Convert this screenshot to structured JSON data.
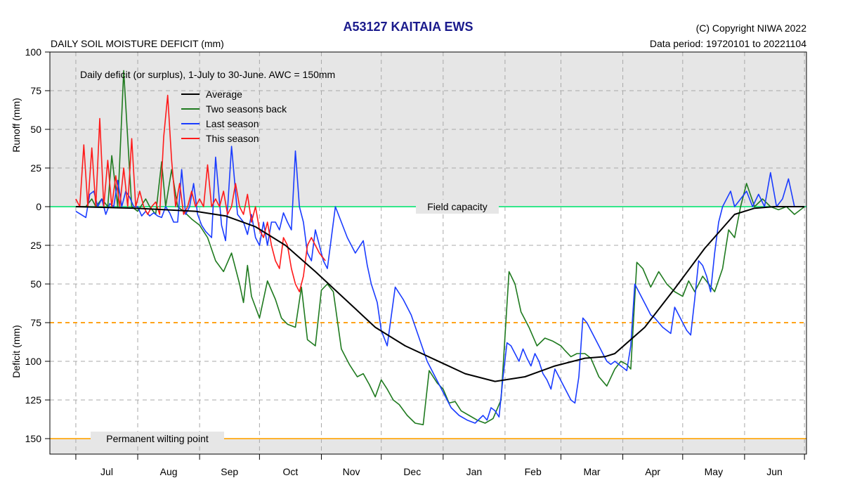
{
  "header": {
    "title": "A53127  KAITAIA EWS",
    "subtitle": "DAILY SOIL MOISTURE DEFICIT (mm)",
    "copyright": "(C) Copyright NIWA  2022",
    "data_period": "Data period:  19720101  to  20221104"
  },
  "colors": {
    "plot_bg": "#e6e6e6",
    "grid": "#a8a8a8",
    "title": "#1a1a8c",
    "field_capacity": "#33e68a",
    "dashed_orange": "#ffa31a",
    "wilting": "#ffb22e"
  },
  "chart_data": {
    "type": "line",
    "title": "A53127  KAITAIA EWS",
    "ylabel_top": "Runoff (mm)",
    "ylabel_bottom": "Deficit (mm)",
    "annotation": "Daily deficit (or surplus), 1-July to 30-June.  AWC = 150mm",
    "ylim": [
      -100,
      160
    ],
    "y_ticks": [
      {
        "v": -100,
        "label": "100"
      },
      {
        "v": -75,
        "label": "75"
      },
      {
        "v": -50,
        "label": "50"
      },
      {
        "v": -25,
        "label": "25"
      },
      {
        "v": 0,
        "label": "0"
      },
      {
        "v": 25,
        "label": "25"
      },
      {
        "v": 50,
        "label": "50"
      },
      {
        "v": 75,
        "label": "75"
      },
      {
        "v": 100,
        "label": "100"
      },
      {
        "v": 125,
        "label": "125"
      },
      {
        "v": 150,
        "label": "150"
      }
    ],
    "xlim": [
      -13,
      366
    ],
    "months": [
      "Jul",
      "Aug",
      "Sep",
      "Oct",
      "Nov",
      "Dec",
      "Jan",
      "Feb",
      "Mar",
      "Apr",
      "May",
      "Jun"
    ],
    "month_starts": [
      0,
      31,
      62,
      92,
      123,
      153,
      184,
      215,
      243,
      274,
      304,
      335,
      365
    ],
    "reference_lines": [
      {
        "y": 0,
        "label": "Field capacity",
        "style": "solid",
        "color": "#33e68a"
      },
      {
        "y": 75,
        "label": "",
        "style": "dashed",
        "color": "#ffa31a"
      },
      {
        "y": 150,
        "label": "Permanent wilting point",
        "style": "solid",
        "color": "#ffb22e"
      }
    ],
    "series": [
      {
        "name": "Average",
        "color": "#000000",
        "x": [
          0,
          30,
          60,
          75,
          90,
          105,
          120,
          135,
          150,
          165,
          180,
          195,
          210,
          225,
          240,
          255,
          265,
          270,
          285,
          300,
          315,
          330,
          340,
          350,
          365
        ],
        "y": [
          0,
          1,
          3,
          6,
          13,
          25,
          42,
          60,
          78,
          90,
          99,
          108,
          113,
          110,
          103,
          98,
          97,
          95,
          78,
          53,
          27,
          5,
          1,
          0,
          0
        ]
      },
      {
        "name": "Two seasons back",
        "color": "#1f7a1f",
        "x": [
          0,
          5,
          8,
          10,
          13,
          16,
          18,
          21,
          24,
          28,
          31,
          35,
          37,
          40,
          43,
          45,
          48,
          51,
          54,
          58,
          62,
          66,
          70,
          74,
          78,
          82,
          84,
          86,
          88,
          92,
          96,
          100,
          103,
          106,
          110,
          113,
          116,
          120,
          123,
          126,
          129,
          133,
          137,
          141,
          144,
          147,
          150,
          153,
          156,
          159,
          162,
          166,
          170,
          174,
          177,
          181,
          184,
          187,
          190,
          193,
          197,
          201,
          205,
          209,
          213,
          217,
          220,
          223,
          227,
          231,
          235,
          239,
          243,
          245,
          248,
          251,
          255,
          258,
          262,
          266,
          270,
          273,
          276,
          278,
          281,
          284,
          288,
          292,
          296,
          300,
          304,
          307,
          310,
          314,
          317,
          320,
          324,
          327,
          330,
          333,
          336,
          340,
          344,
          348,
          352,
          356,
          360,
          365
        ],
        "y": [
          0,
          0,
          -5,
          0,
          -5,
          0,
          -33,
          0,
          -88,
          0,
          3,
          -5,
          0,
          5,
          -29,
          0,
          -24,
          0,
          3,
          8,
          12,
          20,
          35,
          42,
          30,
          50,
          62,
          38,
          58,
          72,
          48,
          60,
          72,
          76,
          78,
          52,
          86,
          90,
          54,
          50,
          55,
          92,
          102,
          110,
          108,
          115,
          123,
          112,
          118,
          125,
          128,
          135,
          140,
          141,
          106,
          114,
          118,
          127,
          126,
          132,
          135,
          138,
          140,
          137,
          125,
          42,
          50,
          68,
          78,
          90,
          85,
          87,
          90,
          93,
          97,
          95,
          95,
          98,
          110,
          116,
          105,
          100,
          102,
          105,
          36,
          40,
          52,
          42,
          50,
          55,
          58,
          48,
          55,
          45,
          50,
          55,
          40,
          15,
          20,
          0,
          -15,
          0,
          -5,
          0,
          2,
          0,
          5,
          0
        ],
        "y_unit": "mm (negative = surplus/runoff)"
      },
      {
        "name": "Last season",
        "color": "#1a3cff",
        "x": [
          0,
          5,
          7,
          9,
          11,
          13,
          15,
          17,
          19,
          21,
          23,
          25,
          27,
          29,
          31,
          33,
          35,
          37,
          39,
          41,
          43,
          45,
          47,
          49,
          51,
          53,
          55,
          57,
          59,
          61,
          63,
          65,
          68,
          70,
          73,
          75,
          78,
          81,
          84,
          86,
          88,
          90,
          92,
          94,
          96,
          98,
          100,
          102,
          104,
          106,
          108,
          110,
          112,
          114,
          116,
          118,
          120,
          122,
          124,
          126,
          128,
          130,
          133,
          136,
          140,
          144,
          146,
          148,
          151,
          153,
          156,
          160,
          164,
          168,
          172,
          176,
          180,
          184,
          188,
          192,
          196,
          200,
          204,
          206,
          208,
          210,
          212,
          214,
          216,
          218,
          220,
          222,
          224,
          226,
          228,
          230,
          232,
          234,
          236,
          238,
          240,
          242,
          244,
          246,
          248,
          250,
          252,
          254,
          256,
          258,
          260,
          262,
          264,
          266,
          268,
          270,
          272,
          274,
          276,
          278,
          280,
          282,
          284,
          286,
          288,
          290,
          292,
          294,
          296,
          298,
          300,
          302,
          304,
          306,
          308,
          310,
          312,
          314,
          316,
          318,
          320,
          322,
          324,
          326,
          328,
          330,
          333,
          336,
          339,
          342,
          345,
          348,
          351,
          354,
          357,
          360,
          365
        ],
        "y": [
          3,
          7,
          -8,
          -10,
          0,
          -5,
          5,
          -2,
          0,
          -17,
          0,
          -10,
          -6,
          0,
          0,
          6,
          3,
          6,
          4,
          6,
          7,
          0,
          4,
          10,
          10,
          -24,
          5,
          0,
          -15,
          5,
          12,
          16,
          20,
          -32,
          12,
          22,
          -39,
          5,
          10,
          18,
          5,
          20,
          25,
          10,
          25,
          10,
          10,
          15,
          4,
          10,
          15,
          -36,
          0,
          10,
          30,
          35,
          15,
          25,
          35,
          40,
          20,
          0,
          10,
          20,
          30,
          22,
          38,
          50,
          62,
          80,
          90,
          52,
          60,
          70,
          85,
          100,
          110,
          120,
          130,
          135,
          138,
          140,
          135,
          138,
          130,
          132,
          136,
          110,
          88,
          90,
          95,
          100,
          92,
          98,
          103,
          95,
          100,
          108,
          112,
          118,
          105,
          110,
          115,
          120,
          125,
          127,
          110,
          72,
          75,
          80,
          85,
          90,
          95,
          100,
          102,
          100,
          102,
          104,
          106,
          90,
          50,
          55,
          60,
          65,
          70,
          72,
          75,
          78,
          80,
          82,
          65,
          70,
          75,
          80,
          83,
          60,
          35,
          38,
          45,
          55,
          30,
          10,
          0,
          -5,
          -10,
          0,
          -5,
          -10,
          0,
          -8,
          0,
          -22,
          0,
          -5,
          -18,
          0,
          0
        ],
        "y_unit": "mm (negative = surplus/runoff)"
      },
      {
        "name": "This season",
        "color": "#ff1a1a",
        "x": [
          0,
          2,
          4,
          6,
          8,
          10,
          12,
          14,
          16,
          18,
          20,
          22,
          24,
          26,
          28,
          30,
          32,
          34,
          36,
          38,
          40,
          42,
          44,
          46,
          48,
          50,
          52,
          54,
          56,
          58,
          60,
          62,
          64,
          66,
          68,
          70,
          72,
          74,
          76,
          78,
          80,
          82,
          84,
          86,
          88,
          90,
          92,
          94,
          96,
          98,
          100,
          102,
          104,
          106,
          108,
          110,
          112,
          114,
          116,
          118,
          120,
          122,
          125
        ],
        "y": [
          -5,
          0,
          -40,
          0,
          -38,
          0,
          -57,
          0,
          -30,
          0,
          -20,
          0,
          -25,
          0,
          -44,
          0,
          -10,
          0,
          5,
          0,
          -3,
          5,
          -45,
          -72,
          -30,
          0,
          -15,
          5,
          0,
          -10,
          0,
          -5,
          0,
          -27,
          0,
          -5,
          0,
          -10,
          5,
          0,
          -15,
          0,
          5,
          -8,
          10,
          0,
          15,
          20,
          10,
          25,
          35,
          40,
          20,
          25,
          40,
          50,
          55,
          45,
          25,
          20,
          25,
          30,
          35
        ],
        "y_unit": "mm (negative = surplus/runoff)"
      }
    ],
    "legend_placement": "top-left",
    "grid": true
  }
}
